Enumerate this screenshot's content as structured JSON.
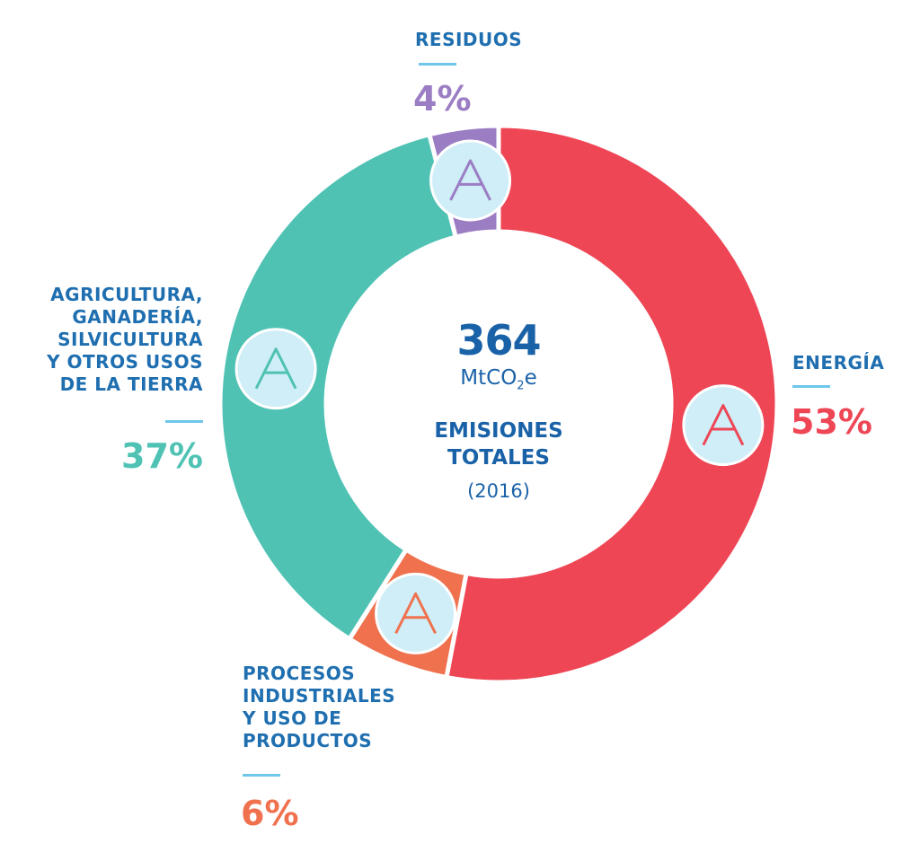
{
  "chart_data": {
    "type": "pie",
    "donut": true,
    "center": {
      "total": "364",
      "unit_prefix": "MtCO",
      "unit_sub": "2",
      "unit_suffix": "e",
      "title_line1": "EMISIONES",
      "title_line2": "TOTALES",
      "year": "(2016)"
    },
    "slices": [
      {
        "label_lines": [
          "ENERGÍA"
        ],
        "value": 53,
        "value_label": "53%",
        "color": "#ee4655",
        "icon": "oil-tower-icon"
      },
      {
        "label_lines": [
          "PROCESOS",
          "INDUSTRIALES",
          "Y USO DE",
          "PRODUCTOS"
        ],
        "value": 6,
        "value_label": "6%",
        "color": "#f0714e",
        "icon": "factory-icon"
      },
      {
        "label_lines": [
          "AGRICULTURA,",
          "GANADERÍA,",
          "SILVICULTURA",
          "Y OTROS USOS",
          "DE LA TIERRA"
        ],
        "value": 37,
        "value_label": "37%",
        "color": "#4fc2b4",
        "icon": "cow-tree-icon"
      },
      {
        "label_lines": [
          "RESIDUOS"
        ],
        "value": 4,
        "value_label": "4%",
        "color": "#9b7dc4",
        "icon": "trash-bags-icon"
      }
    ],
    "legend": "none"
  }
}
